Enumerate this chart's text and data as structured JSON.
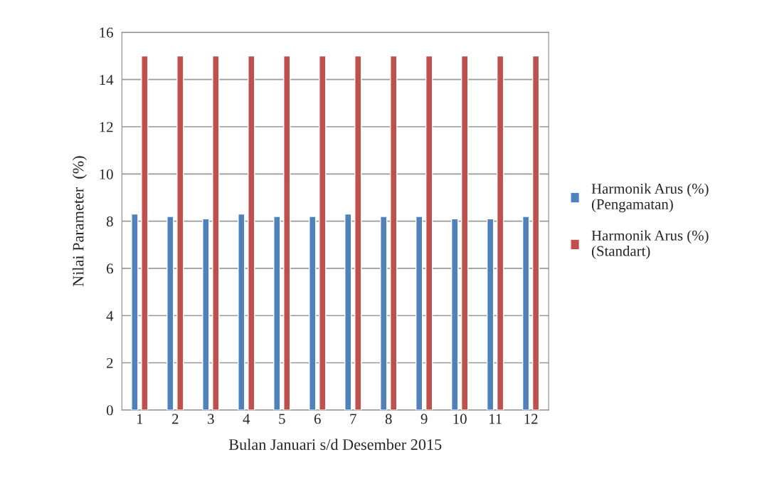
{
  "chart_data": {
    "type": "bar",
    "xlabel": "Bulan Januari s/d Desember 2015",
    "ylabel": "Nilai Parameter  (%)",
    "categories": [
      "1",
      "2",
      "3",
      "4",
      "5",
      "6",
      "7",
      "8",
      "9",
      "10",
      "11",
      "12"
    ],
    "series": [
      {
        "name": "Harmonik Arus (%)\n(Pengamatan)",
        "color": "#4f81bd",
        "values": [
          8.3,
          8.2,
          8.1,
          8.3,
          8.2,
          8.2,
          8.3,
          8.2,
          8.2,
          8.1,
          8.1,
          8.2
        ]
      },
      {
        "name": "Harmonik Arus (%)\n(Standart)",
        "color": "#c0504d",
        "values": [
          15,
          15,
          15,
          15,
          15,
          15,
          15,
          15,
          15,
          15,
          15,
          15
        ]
      }
    ],
    "ylim": [
      0,
      16
    ],
    "yticks": [
      0,
      2,
      4,
      6,
      8,
      10,
      12,
      14,
      16
    ],
    "grid": "y",
    "legend": "right"
  }
}
